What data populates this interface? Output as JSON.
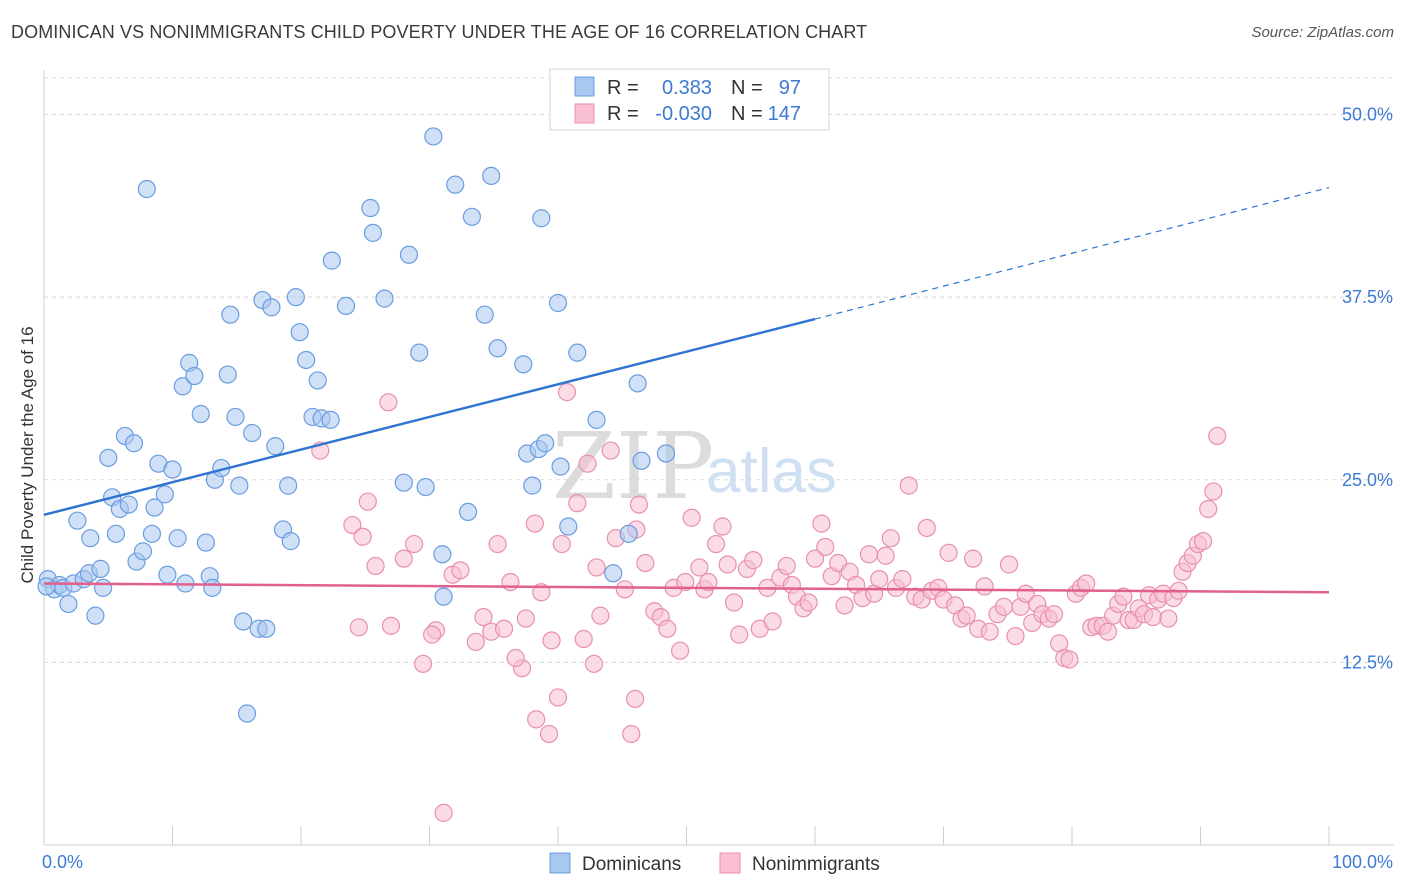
{
  "title": "DOMINICAN VS NONIMMIGRANTS CHILD POVERTY UNDER THE AGE OF 16 CORRELATION CHART",
  "source": "Source: ZipAtlas.com",
  "watermark": {
    "zip": "ZIP",
    "atlas": "atlas"
  },
  "colors": {
    "blue_fill": "#a9c8f0",
    "blue_stroke": "#6a9de0",
    "blue_line": "#2f74d0",
    "pink_fill": "#f8c0d2",
    "pink_stroke": "#e890ad",
    "pink_line": "#e0608e",
    "axis_text": "#3d7ad4",
    "grid": "#d8d8d8"
  },
  "stats": {
    "blue": {
      "r_label": "R =",
      "r_value": "0.383",
      "n_label": "N =",
      "n_value": "97"
    },
    "pink": {
      "r_label": "R =",
      "r_value": "-0.030",
      "n_label": "N =",
      "n_value": "147"
    }
  },
  "chart_data": {
    "type": "scatter",
    "title": "DOMINICAN VS NONIMMIGRANTS CHILD POVERTY UNDER THE AGE OF 16 CORRELATION CHART",
    "xlabel": "",
    "ylabel": "Child Poverty Under the Age of 16",
    "xlim": [
      0,
      100
    ],
    "ylim": [
      0,
      52.5
    ],
    "x_tick_labels": [
      "0.0%",
      "100.0%"
    ],
    "y_ticks": [
      12.5,
      25.0,
      37.5,
      50.0
    ],
    "y_tick_labels": [
      "12.5%",
      "25.0%",
      "37.5%",
      "50.0%"
    ],
    "grid": "horizontal dashed",
    "legend_position": "bottom-center",
    "series": [
      {
        "name": "Dominicans",
        "color": "#a9c8f0",
        "trend": {
          "x0": 0,
          "y0": 22.6,
          "x1": 60,
          "y1": 36.0,
          "dashed_to_x": 100,
          "dashed_to_y": 45.0
        },
        "points": [
          [
            0.3,
            18.2
          ],
          [
            0.8,
            17.5
          ],
          [
            1.2,
            17.8
          ],
          [
            1.5,
            17.6
          ],
          [
            1.9,
            16.5
          ],
          [
            2.3,
            17.9
          ],
          [
            2.6,
            22.2
          ],
          [
            3.1,
            18.2
          ],
          [
            3.5,
            18.6
          ],
          [
            3.6,
            21.0
          ],
          [
            4.0,
            15.7
          ],
          [
            4.4,
            18.9
          ],
          [
            4.6,
            17.6
          ],
          [
            5.0,
            26.5
          ],
          [
            5.3,
            23.8
          ],
          [
            5.6,
            21.3
          ],
          [
            5.9,
            23.0
          ],
          [
            6.3,
            28.0
          ],
          [
            6.6,
            23.3
          ],
          [
            7.0,
            27.5
          ],
          [
            7.2,
            19.4
          ],
          [
            7.7,
            20.1
          ],
          [
            8.0,
            44.9
          ],
          [
            8.4,
            21.3
          ],
          [
            8.6,
            23.1
          ],
          [
            8.9,
            26.1
          ],
          [
            9.4,
            24.0
          ],
          [
            9.6,
            18.5
          ],
          [
            10.0,
            25.7
          ],
          [
            10.4,
            21.0
          ],
          [
            10.8,
            31.4
          ],
          [
            11.0,
            17.9
          ],
          [
            11.3,
            33.0
          ],
          [
            11.7,
            32.1
          ],
          [
            12.2,
            29.5
          ],
          [
            12.6,
            20.7
          ],
          [
            12.9,
            18.4
          ],
          [
            13.1,
            17.6
          ],
          [
            13.3,
            25.0
          ],
          [
            13.8,
            25.8
          ],
          [
            14.3,
            32.2
          ],
          [
            14.5,
            36.3
          ],
          [
            14.9,
            29.3
          ],
          [
            15.2,
            24.6
          ],
          [
            15.5,
            15.3
          ],
          [
            15.8,
            9.0
          ],
          [
            16.2,
            28.2
          ],
          [
            16.7,
            14.8
          ],
          [
            17.0,
            37.3
          ],
          [
            17.3,
            14.8
          ],
          [
            17.7,
            36.8
          ],
          [
            18.0,
            27.3
          ],
          [
            18.6,
            21.6
          ],
          [
            19.0,
            24.6
          ],
          [
            19.2,
            20.8
          ],
          [
            19.6,
            37.5
          ],
          [
            19.9,
            35.1
          ],
          [
            20.4,
            33.2
          ],
          [
            20.9,
            29.3
          ],
          [
            21.3,
            31.8
          ],
          [
            21.6,
            29.2
          ],
          [
            22.3,
            29.1
          ],
          [
            22.4,
            40.0
          ],
          [
            23.5,
            36.9
          ],
          [
            25.4,
            43.6
          ],
          [
            25.6,
            41.9
          ],
          [
            26.5,
            37.4
          ],
          [
            28.0,
            24.8
          ],
          [
            28.4,
            40.4
          ],
          [
            29.2,
            33.7
          ],
          [
            29.7,
            24.5
          ],
          [
            30.3,
            48.5
          ],
          [
            31.0,
            19.9
          ],
          [
            31.1,
            17.0
          ],
          [
            32.0,
            45.2
          ],
          [
            33.0,
            22.8
          ],
          [
            33.3,
            43.0
          ],
          [
            34.3,
            36.3
          ],
          [
            34.8,
            45.8
          ],
          [
            35.3,
            34.0
          ],
          [
            37.3,
            32.9
          ],
          [
            37.6,
            26.8
          ],
          [
            38.0,
            24.6
          ],
          [
            38.5,
            27.1
          ],
          [
            38.7,
            42.9
          ],
          [
            39.0,
            27.5
          ],
          [
            40.0,
            37.1
          ],
          [
            40.8,
            21.8
          ],
          [
            40.2,
            25.9
          ],
          [
            41.5,
            33.7
          ],
          [
            43.0,
            29.1
          ],
          [
            44.3,
            18.6
          ],
          [
            45.5,
            21.3
          ],
          [
            46.2,
            31.6
          ],
          [
            46.5,
            26.3
          ],
          [
            48.4,
            26.8
          ],
          [
            0.2,
            17.7
          ]
        ]
      },
      {
        "name": "Nonimmigrants",
        "color": "#f8c0d2",
        "trend": {
          "x0": 0,
          "y0": 17.9,
          "x1": 100,
          "y1": 17.3
        },
        "points": [
          [
            21.5,
            27.0
          ],
          [
            24.0,
            21.9
          ],
          [
            24.8,
            21.1
          ],
          [
            25.2,
            23.5
          ],
          [
            25.8,
            19.1
          ],
          [
            24.5,
            14.9
          ],
          [
            27.0,
            15.0
          ],
          [
            26.8,
            30.3
          ],
          [
            28.0,
            19.6
          ],
          [
            28.8,
            20.6
          ],
          [
            29.5,
            12.4
          ],
          [
            30.5,
            14.7
          ],
          [
            30.2,
            14.4
          ],
          [
            31.1,
            2.2
          ],
          [
            31.8,
            18.5
          ],
          [
            32.4,
            18.8
          ],
          [
            33.6,
            13.9
          ],
          [
            34.2,
            15.6
          ],
          [
            34.8,
            14.6
          ],
          [
            35.3,
            20.6
          ],
          [
            35.8,
            14.8
          ],
          [
            36.3,
            18.0
          ],
          [
            37.2,
            12.1
          ],
          [
            37.5,
            15.5
          ],
          [
            38.3,
            8.6
          ],
          [
            38.7,
            17.3
          ],
          [
            39.3,
            7.6
          ],
          [
            40.0,
            10.1
          ],
          [
            40.7,
            31.0
          ],
          [
            40.3,
            20.6
          ],
          [
            41.5,
            23.4
          ],
          [
            42.3,
            26.1
          ],
          [
            42.0,
            14.1
          ],
          [
            42.8,
            12.4
          ],
          [
            43.0,
            19.0
          ],
          [
            43.3,
            15.7
          ],
          [
            44.1,
            27.0
          ],
          [
            44.5,
            21.0
          ],
          [
            45.2,
            17.5
          ],
          [
            45.7,
            7.6
          ],
          [
            46.0,
            10.0
          ],
          [
            46.3,
            23.3
          ],
          [
            46.8,
            19.3
          ],
          [
            47.5,
            16.0
          ],
          [
            48.0,
            15.6
          ],
          [
            48.5,
            14.8
          ],
          [
            49.0,
            17.6
          ],
          [
            49.5,
            13.3
          ],
          [
            49.9,
            18.0
          ],
          [
            50.4,
            22.4
          ],
          [
            51.0,
            19.0
          ],
          [
            51.4,
            17.5
          ],
          [
            51.7,
            18.0
          ],
          [
            52.3,
            20.6
          ],
          [
            52.8,
            21.8
          ],
          [
            53.2,
            19.2
          ],
          [
            53.7,
            16.6
          ],
          [
            54.1,
            14.4
          ],
          [
            54.7,
            18.9
          ],
          [
            55.2,
            19.5
          ],
          [
            55.7,
            14.8
          ],
          [
            56.3,
            17.6
          ],
          [
            56.7,
            15.3
          ],
          [
            57.3,
            18.3
          ],
          [
            57.8,
            19.1
          ],
          [
            58.2,
            17.8
          ],
          [
            58.6,
            17.0
          ],
          [
            59.1,
            16.2
          ],
          [
            59.5,
            16.6
          ],
          [
            60.0,
            19.6
          ],
          [
            60.5,
            22.0
          ],
          [
            60.8,
            20.4
          ],
          [
            61.3,
            18.4
          ],
          [
            61.8,
            19.3
          ],
          [
            62.3,
            16.4
          ],
          [
            62.7,
            18.7
          ],
          [
            63.2,
            17.8
          ],
          [
            63.7,
            16.9
          ],
          [
            64.2,
            19.9
          ],
          [
            64.6,
            17.2
          ],
          [
            65.0,
            18.2
          ],
          [
            65.5,
            19.8
          ],
          [
            65.9,
            21.0
          ],
          [
            66.3,
            17.6
          ],
          [
            66.8,
            18.2
          ],
          [
            67.3,
            24.6
          ],
          [
            67.8,
            17.0
          ],
          [
            68.3,
            16.8
          ],
          [
            68.7,
            21.7
          ],
          [
            69.1,
            17.4
          ],
          [
            69.6,
            17.6
          ],
          [
            70.0,
            16.8
          ],
          [
            70.4,
            20.0
          ],
          [
            70.9,
            16.4
          ],
          [
            71.4,
            15.5
          ],
          [
            71.8,
            15.7
          ],
          [
            72.3,
            19.6
          ],
          [
            72.7,
            14.8
          ],
          [
            73.2,
            17.7
          ],
          [
            73.6,
            14.6
          ],
          [
            74.2,
            15.8
          ],
          [
            74.7,
            16.3
          ],
          [
            75.1,
            19.2
          ],
          [
            75.6,
            14.3
          ],
          [
            76.0,
            16.3
          ],
          [
            76.4,
            17.2
          ],
          [
            76.9,
            15.2
          ],
          [
            77.3,
            16.5
          ],
          [
            77.7,
            15.8
          ],
          [
            78.2,
            15.5
          ],
          [
            78.6,
            15.8
          ],
          [
            79.0,
            13.8
          ],
          [
            79.4,
            12.8
          ],
          [
            79.8,
            12.7
          ],
          [
            80.3,
            17.2
          ],
          [
            80.7,
            17.6
          ],
          [
            81.1,
            17.9
          ],
          [
            81.5,
            14.9
          ],
          [
            81.9,
            15.0
          ],
          [
            82.4,
            15.0
          ],
          [
            82.8,
            14.6
          ],
          [
            83.2,
            15.7
          ],
          [
            83.6,
            16.5
          ],
          [
            84.0,
            17.0
          ],
          [
            84.4,
            15.4
          ],
          [
            84.8,
            15.4
          ],
          [
            85.2,
            16.2
          ],
          [
            85.6,
            15.8
          ],
          [
            86.0,
            17.1
          ],
          [
            86.3,
            15.6
          ],
          [
            86.7,
            16.8
          ],
          [
            87.1,
            17.2
          ],
          [
            87.5,
            15.5
          ],
          [
            87.9,
            16.9
          ],
          [
            88.3,
            17.4
          ],
          [
            88.6,
            18.7
          ],
          [
            89.0,
            19.3
          ],
          [
            89.4,
            19.8
          ],
          [
            89.8,
            20.6
          ],
          [
            90.2,
            20.8
          ],
          [
            90.6,
            23.0
          ],
          [
            91.0,
            24.2
          ],
          [
            91.3,
            28.0
          ],
          [
            38.2,
            22.0
          ],
          [
            39.5,
            14.0
          ],
          [
            46.1,
            21.6
          ],
          [
            36.7,
            12.8
          ]
        ]
      }
    ]
  },
  "legend": {
    "items": [
      {
        "label": "Dominicans"
      },
      {
        "label": "Nonimmigrants"
      }
    ]
  }
}
